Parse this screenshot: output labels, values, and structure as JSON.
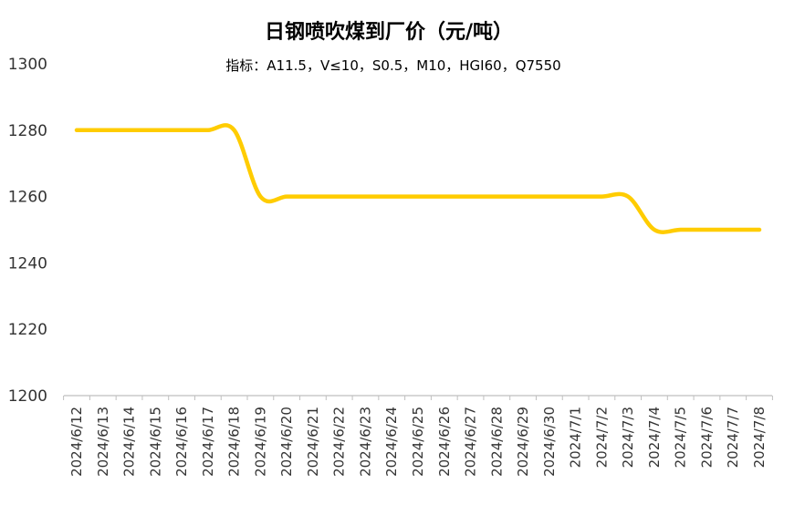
{
  "chart_data": {
    "type": "line",
    "title": "日钢喷吹煤到厂价（元/吨）",
    "subtitle": "指标：A11.5，V≤10，S0.5，M10，HGI60，Q7550",
    "xlabel": "",
    "ylabel": "",
    "ylim": [
      1200,
      1300
    ],
    "yticks": [
      1200,
      1220,
      1240,
      1260,
      1280,
      1300
    ],
    "grid": false,
    "legend": "none",
    "categories": [
      "2024/6/12",
      "2024/6/13",
      "2024/6/14",
      "2024/6/15",
      "2024/6/16",
      "2024/6/17",
      "2024/6/18",
      "2024/6/19",
      "2024/6/20",
      "2024/6/21",
      "2024/6/22",
      "2024/6/23",
      "2024/6/24",
      "2024/6/25",
      "2024/6/26",
      "2024/6/27",
      "2024/6/28",
      "2024/6/29",
      "2024/6/30",
      "2024/7/1",
      "2024/7/2",
      "2024/7/3",
      "2024/7/4",
      "2024/7/5",
      "2024/7/6",
      "2024/7/7",
      "2024/7/8"
    ],
    "series": [
      {
        "color": "#FFCC00",
        "values": [
          1280,
          1280,
          1280,
          1280,
          1280,
          1280,
          1280,
          1260,
          1260,
          1260,
          1260,
          1260,
          1260,
          1260,
          1260,
          1260,
          1260,
          1260,
          1260,
          1260,
          1260,
          1260,
          1250,
          1250,
          1250,
          1250,
          1250
        ]
      }
    ],
    "axis_color": "#BFBFBF"
  }
}
